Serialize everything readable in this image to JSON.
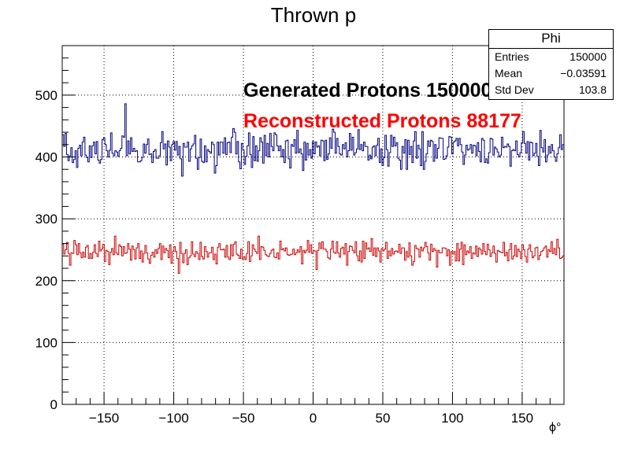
{
  "title": "Thrown p",
  "stats": {
    "name": "Phi",
    "rows": [
      {
        "label": "Entries",
        "value": "150000"
      },
      {
        "label": "Mean",
        "value": "−0.03591"
      },
      {
        "label": "Std Dev",
        "value": "103.8"
      }
    ]
  },
  "annotations": {
    "generated": "Generated Protons 150000",
    "reconstructed": "Reconstructed Protons 88177"
  },
  "colors": {
    "generated": "#00007f",
    "reconstructed": "#cc0000",
    "reconstructed_text": "#ff0000"
  },
  "chart_data": {
    "type": "histogram",
    "xlabel": "ϕ°",
    "ylabel": "",
    "xlim": [
      -180,
      180
    ],
    "ylim": [
      0,
      580
    ],
    "grid": true,
    "bin_width": 1,
    "x_ticks": [
      "−150",
      "−100",
      "−50",
      "0",
      "50",
      "100",
      "150"
    ],
    "x_tick_values": [
      -150,
      -100,
      -50,
      0,
      50,
      100,
      150
    ],
    "y_ticks": [
      "0",
      "100",
      "200",
      "300",
      "400",
      "500"
    ],
    "y_tick_values": [
      0,
      100,
      200,
      300,
      400,
      500
    ],
    "series": [
      {
        "key": "generated",
        "values": [
          436,
          417,
          438,
          404,
          394,
          402,
          415,
          391,
          396,
          410,
          383,
          414,
          419,
          402,
          424,
          432,
          403,
          399,
          392,
          418,
          399,
          418,
          424,
          405,
          425,
          395,
          390,
          396,
          428,
          431,
          420,
          410,
          400,
          411,
          439,
          406,
          402,
          410,
          408,
          401,
          410,
          414,
          434,
          432,
          486,
          402,
          426,
          405,
          431,
          409,
          414,
          409,
          410,
          392,
          392,
          394,
          399,
          421,
          406,
          420,
          429,
          404,
          405,
          391,
          409,
          412,
          398,
          398,
          402,
          423,
          441,
          413,
          421,
          387,
          426,
          416,
          394,
          420,
          425,
          411,
          425,
          403,
          417,
          397,
          369,
          422,
          416,
          416,
          424,
          393,
          413,
          418,
          421,
          435,
          398,
          380,
          399,
          429,
          393,
          391,
          418,
          392,
          412,
          409,
          406,
          424,
          420,
          374,
          386,
          424,
          403,
          424,
          424,
          406,
          431,
          404,
          423,
          424,
          407,
          432,
          446,
          440,
          405,
          425,
          392,
          381,
          422,
          411,
          388,
          401,
          418,
          439,
          404,
          383,
          433,
          394,
          418,
          393,
          410,
          431,
          424,
          390,
          435,
          402,
          422,
          400,
          438,
          417,
          410,
          439,
          436,
          418,
          410,
          418,
          400,
          412,
          391,
          426,
          427,
          397,
          382,
          420,
          417,
          428,
          406,
          443,
          407,
          413,
          405,
          378,
          424,
          395,
          422,
          403,
          412,
          398,
          425,
          405,
          424,
          416,
          418,
          402,
          427,
          426,
          394,
          427,
          396,
          405,
          431,
          414,
          445,
          440,
          406,
          430,
          417,
          405,
          403,
          420,
          413,
          423,
          400,
          410,
          438,
          411,
          432,
          403,
          407,
          413,
          444,
          412,
          420,
          410,
          424,
          417,
          417,
          395,
          403,
          397,
          416,
          418,
          402,
          419,
          430,
          391,
          413,
          386,
          399,
          435,
          412,
          385,
          407,
          435,
          417,
          432,
          418,
          423,
          398,
          395,
          380,
          417,
          406,
          428,
          380,
          427,
          404,
          417,
          391,
          426,
          441,
          398,
          419,
          413,
          386,
          441,
          380,
          393,
          405,
          426,
          417,
          427,
          425,
          393,
          420,
          398,
          414,
          431,
          430,
          430,
          396,
          397,
          402,
          416,
          433,
          432,
          405,
          424,
          426,
          430,
          418,
          430,
          420,
          408,
          388,
          403,
          419,
          411,
          413,
          420,
          406,
          419,
          418,
          402,
          423,
          409,
          392,
          430,
          427,
          391,
          397,
          390,
          407,
          430,
          429,
          403,
          416,
          413,
          408,
          400,
          403,
          432,
          415,
          417,
          416,
          421,
          417,
          385,
          410,
          412,
          410,
          426,
          404,
          400,
          407,
          423,
          441,
          422,
          406,
          425,
          395,
          424,
          423,
          402,
          406,
          422,
          401,
          386,
          443,
          415,
          408,
          428,
          392,
          403,
          417,
          406,
          420,
          410,
          400,
          393,
          405,
          415,
          436,
          412,
          420
        ]
      },
      {
        "key": "reconstructed",
        "values": [
          259,
          243,
          250,
          262,
          244,
          225,
          245,
          244,
          265,
          258,
          242,
          260,
          245,
          237,
          246,
          238,
          254,
          257,
          236,
          244,
          236,
          246,
          258,
          244,
          239,
          264,
          248,
          251,
          259,
          231,
          249,
          247,
          226,
          246,
          252,
          242,
          272,
          245,
          242,
          258,
          255,
          240,
          255,
          244,
          245,
          260,
          251,
          233,
          256,
          250,
          235,
          253,
          260,
          236,
          248,
          230,
          244,
          257,
          245,
          235,
          228,
          241,
          246,
          238,
          250,
          244,
          252,
          260,
          234,
          256,
          245,
          252,
          249,
          237,
          258,
          228,
          247,
          255,
          247,
          236,
          212,
          262,
          244,
          229,
          244,
          250,
          226,
          237,
          240,
          263,
          243,
          239,
          247,
          244,
          234,
          262,
          239,
          235,
          255,
          247,
          238,
          245,
          245,
          254,
          234,
          243,
          227,
          254,
          260,
          250,
          250,
          251,
          238,
          257,
          238,
          234,
          258,
          240,
          259,
          263,
          243,
          241,
          236,
          251,
          235,
          239,
          234,
          244,
          263,
          231,
          240,
          258,
          251,
          247,
          244,
          272,
          234,
          255,
          254,
          249,
          242,
          240,
          239,
          244,
          249,
          251,
          238,
          237,
          245,
          235,
          264,
          250,
          252,
          248,
          253,
          242,
          241,
          242,
          243,
          251,
          242,
          245,
          250,
          246,
          255,
          227,
          249,
          245,
          249,
          265,
          246,
          258,
          244,
          249,
          248,
          218,
          249,
          261,
          252,
          263,
          251,
          251,
          247,
          237,
          235,
          251,
          264,
          246,
          244,
          263,
          245,
          238,
          252,
          254,
          243,
          260,
          225,
          247,
          256,
          255,
          249,
          245,
          263,
          240,
          232,
          248,
          230,
          264,
          236,
          261,
          251,
          253,
          247,
          268,
          241,
          253,
          239,
          253,
          248,
          230,
          252,
          248,
          251,
          262,
          236,
          248,
          240,
          252,
          243,
          247,
          248,
          246,
          259,
          244,
          253,
          253,
          233,
          247,
          238,
          261,
          240,
          225,
          231,
          257,
          252,
          251,
          238,
          254,
          248,
          253,
          262,
          255,
          245,
          233,
          259,
          247,
          252,
          249,
          222,
          249,
          245,
          245,
          253,
          253,
          252,
          240,
          250,
          225,
          247,
          243,
          247,
          232,
          260,
          232,
          251,
          262,
          226,
          258,
          242,
          248,
          245,
          255,
          236,
          245,
          243,
          256,
          239,
          253,
          250,
          243,
          260,
          247,
          242,
          259,
          250,
          239,
          245,
          256,
          244,
          230,
          249,
          247,
          246,
          245,
          262,
          240,
          246,
          232,
          250,
          260,
          235,
          240,
          257,
          239,
          251,
          247,
          236,
          258,
          250,
          239,
          230,
          251,
          258,
          247,
          237,
          240,
          253,
          254,
          234,
          241,
          247,
          249,
          253,
          256,
          238,
          250,
          247,
          263,
          244,
          252,
          242,
          267,
          253,
          236,
          237,
          240
        ]
      }
    ]
  }
}
